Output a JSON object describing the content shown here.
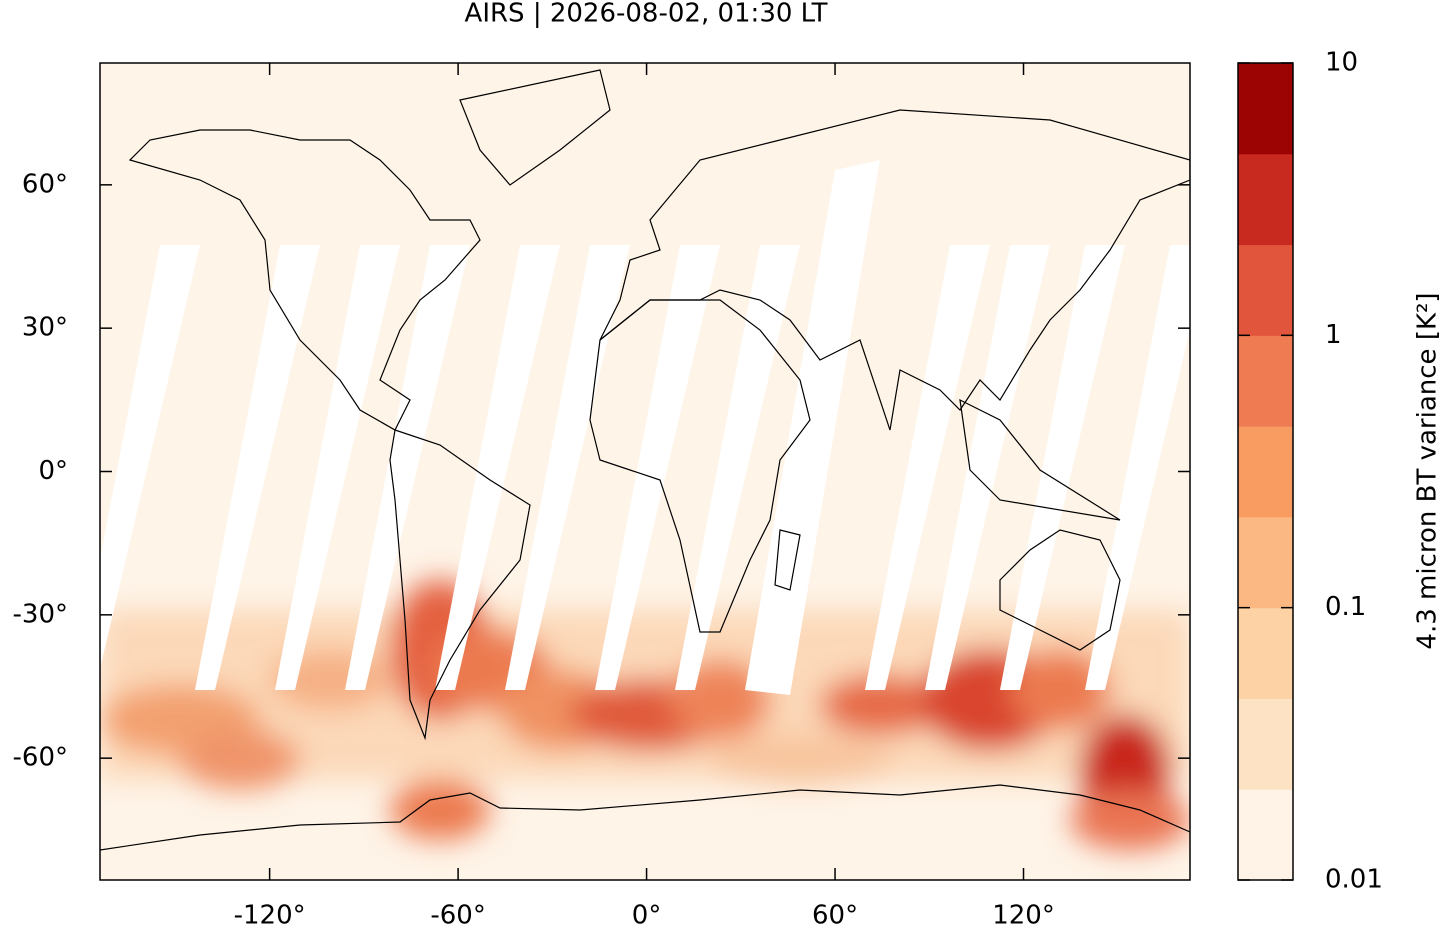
{
  "chart_data": {
    "type": "map",
    "title": "AIRS | 2026-08-02, 01:30 LT",
    "xlim": [
      -174,
      173
    ],
    "ylim": [
      -85.5,
      85.5
    ],
    "xticks": [
      {
        "value": -120,
        "label": "-120°"
      },
      {
        "value": -60,
        "label": "-60°"
      },
      {
        "value": 0,
        "label": "0°"
      },
      {
        "value": 60,
        "label": "60°"
      },
      {
        "value": 120,
        "label": "120°"
      }
    ],
    "yticks": [
      {
        "value": -60,
        "label": "-60°"
      },
      {
        "value": -30,
        "label": "-30°"
      },
      {
        "value": 0,
        "label": "0°"
      },
      {
        "value": 30,
        "label": "30°"
      },
      {
        "value": 60,
        "label": "60°"
      }
    ],
    "colorbar": {
      "label": "4.3 micron BT variance [K²]",
      "scale": "log",
      "lim": [
        0.01,
        10
      ],
      "ticks": [
        0.01,
        0.1,
        1,
        10
      ],
      "colors": [
        "#fef3e6",
        "#fde3c4",
        "#fdd2a4",
        "#fcb882",
        "#f89c62",
        "#ee7b52",
        "#e1553d",
        "#c82a1f",
        "#9c0303"
      ]
    }
  }
}
